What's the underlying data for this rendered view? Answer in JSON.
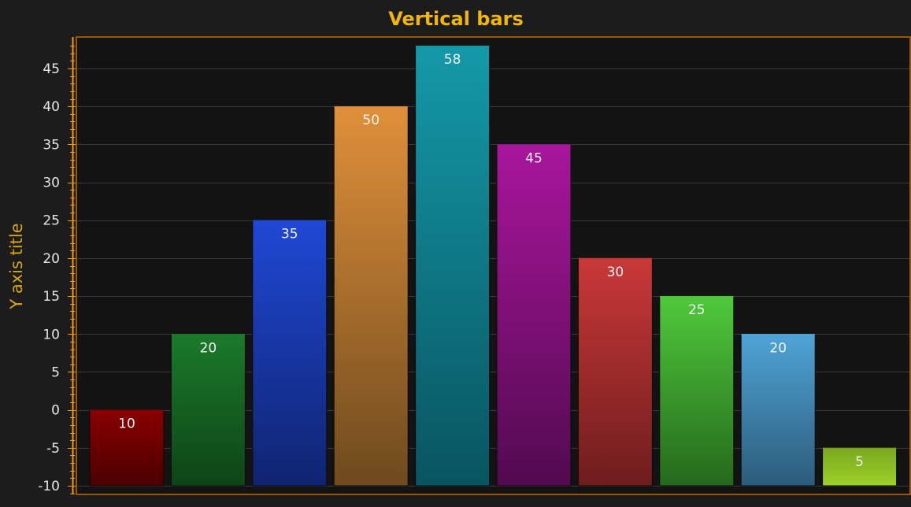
{
  "chart_data": {
    "type": "bar",
    "title": "Vertical bars",
    "xlabel": "",
    "ylabel": "Y axis title",
    "ylim": [
      -10,
      48
    ],
    "yticks": [
      -10,
      -5,
      0,
      5,
      10,
      15,
      20,
      25,
      30,
      35,
      40,
      45
    ],
    "grid": true,
    "bar_base": -10,
    "bars": [
      {
        "value": 0,
        "label": "10",
        "color_top": "#8a0000",
        "color_bottom": "#4a0000"
      },
      {
        "value": 10,
        "label": "20",
        "color_top": "#1b7a2a",
        "color_bottom": "#0d4417"
      },
      {
        "value": 25,
        "label": "35",
        "color_top": "#1f48d4",
        "color_bottom": "#0f2470"
      },
      {
        "value": 40,
        "label": "50",
        "color_top": "#e0903a",
        "color_bottom": "#6e4a1e"
      },
      {
        "value": 48,
        "label": "58",
        "color_top": "#1499a8",
        "color_bottom": "#085560"
      },
      {
        "value": 35,
        "label": "45",
        "color_top": "#a8169c",
        "color_bottom": "#520a4f"
      },
      {
        "value": 20,
        "label": "30",
        "color_top": "#c93838",
        "color_bottom": "#6e1d1d"
      },
      {
        "value": 15,
        "label": "25",
        "color_top": "#4fc93b",
        "color_bottom": "#25691c"
      },
      {
        "value": 10,
        "label": "20",
        "color_top": "#4ea4d6",
        "color_bottom": "#2d5c7a"
      },
      {
        "value": -5,
        "label": "5",
        "color_top": "#7aa81c",
        "color_bottom": "#9dd12a"
      }
    ]
  },
  "colors": {
    "background": "#1c1c1c",
    "plot_background": "#131313",
    "plot_border": "#c76a00",
    "axis": "#f59a16",
    "grid": "#3a3a3a"
  }
}
